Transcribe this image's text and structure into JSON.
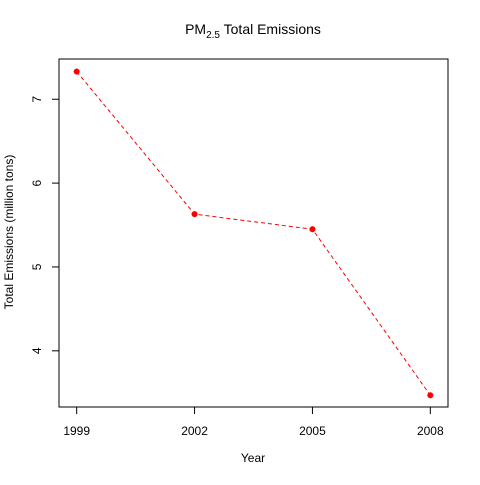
{
  "chart_data": {
    "type": "line",
    "title_main": "PM",
    "title_subscript": "2.5",
    "title_rest": " Total Emissions",
    "xlabel": "Year",
    "ylabel": "Total Emissions (million tons)",
    "x": [
      1999,
      2002,
      2005,
      2008
    ],
    "x_tick_labels": [
      "1999",
      "2002",
      "2005",
      "2008"
    ],
    "series": [
      {
        "values": [
          7.33,
          5.63,
          5.45,
          3.47
        ],
        "color": "#ff0000",
        "line_style": "dashed",
        "marker": "filled-circle"
      }
    ],
    "y_ticks": [
      4,
      5,
      6,
      7
    ],
    "y_tick_labels": [
      "4",
      "5",
      "6",
      "7"
    ],
    "xlim": [
      1998.55,
      2008.45
    ],
    "ylim": [
      3.33,
      7.48
    ],
    "grid": false,
    "legend": "none"
  }
}
